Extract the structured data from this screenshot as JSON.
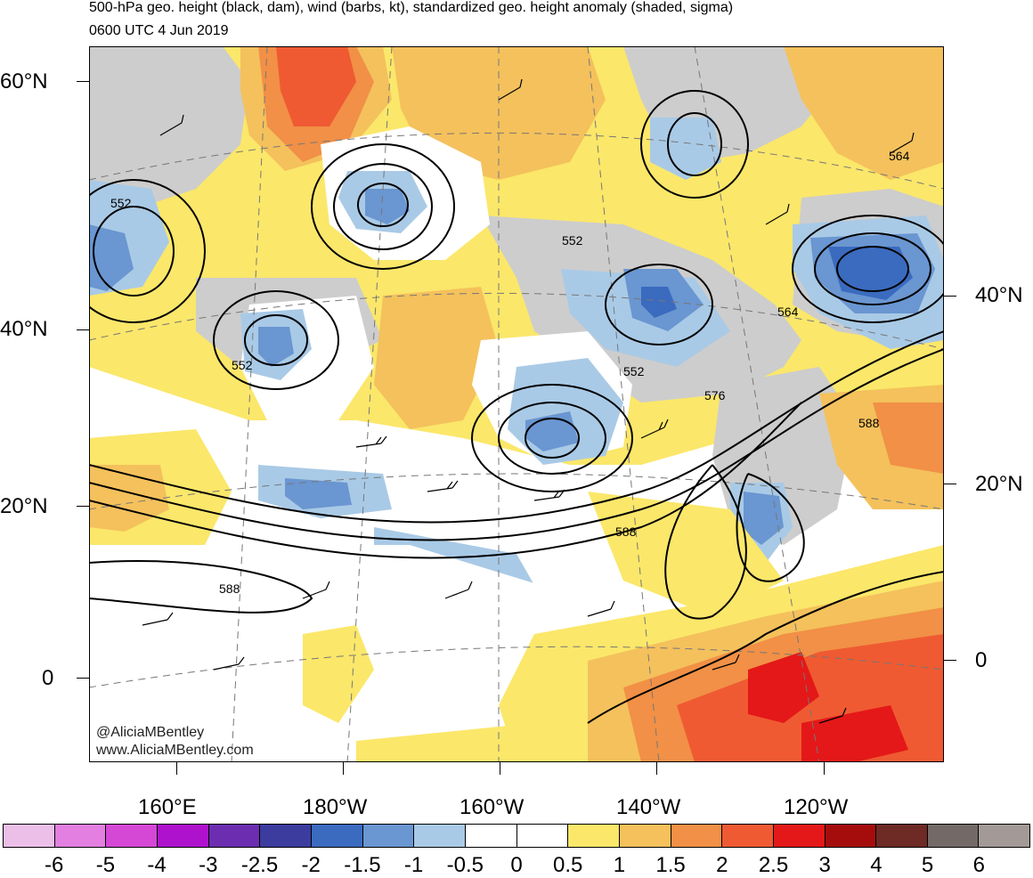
{
  "header": {
    "title_line1": "500-hPa geo. height (black, dam), wind (barbs, kt), standardized geo. height anomaly (shaded, sigma)",
    "title_line2": "0600 UTC 4 Jun 2019"
  },
  "axes": {
    "lat_left": [
      {
        "text": "60°N"
      },
      {
        "text": "40°N"
      },
      {
        "text": "20°N"
      },
      {
        "text": "0"
      }
    ],
    "lat_right": [
      {
        "text": "40°N"
      },
      {
        "text": "20°N"
      },
      {
        "text": "0"
      }
    ],
    "lon_bottom": [
      {
        "text": "160°E"
      },
      {
        "text": "180°W"
      },
      {
        "text": "160°W"
      },
      {
        "text": "140°W"
      },
      {
        "text": "120°W"
      }
    ]
  },
  "contour_labels": [
    "552",
    "552",
    "552",
    "552",
    "564",
    "564",
    "576",
    "588",
    "588",
    "588"
  ],
  "credit": {
    "handle": "@AliciaMBentley",
    "site": "www.AliciaMBentley.com"
  },
  "colorbar": {
    "labels": [
      "-6",
      "-5",
      "-4",
      "-3",
      "-2.5",
      "-2",
      "-1.5",
      "-1",
      "-0.5",
      "0",
      "0.5",
      "1",
      "1.5",
      "2",
      "2.5",
      "3",
      "4",
      "5",
      "6"
    ],
    "colors": [
      "#ebbfe8",
      "#e27fe0",
      "#d548d6",
      "#ae12cd",
      "#6c2db0",
      "#3b3c9e",
      "#3b6bbf",
      "#6a96d1",
      "#a9cae6",
      "#ffffff",
      "#ffffff",
      "#fbe76a",
      "#f4c15c",
      "#f19046",
      "#ef5a32",
      "#e41818",
      "#a50d0d",
      "#6e2a24",
      "#736a68",
      "#a39a98"
    ]
  }
}
